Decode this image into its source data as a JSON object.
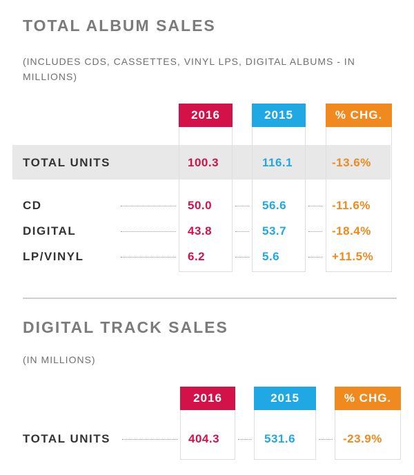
{
  "album": {
    "title": "TOTAL ALBUM SALES",
    "subtitle": "(INCLUDES CDS, CASSETTES, VINYL LPS, DIGITAL ALBUMS - IN MILLIONS)",
    "columns": [
      "2016",
      "2015",
      "% CHG."
    ],
    "column_colors": [
      "#d4124a",
      "#1fa8e4",
      "#f08a1e"
    ],
    "total": {
      "label": "TOTAL UNITS",
      "v2016": "100.3",
      "v2015": "116.1",
      "chg": "-13.6%"
    },
    "rows": [
      {
        "label": "CD",
        "v2016": "50.0",
        "v2015": "56.6",
        "chg": "-11.6%"
      },
      {
        "label": "DIGITAL",
        "v2016": "43.8",
        "v2015": "53.7",
        "chg": "-18.4%"
      },
      {
        "label": "LP/VINYL",
        "v2016": "6.2",
        "v2015": "5.6",
        "chg": "+11.5%"
      }
    ]
  },
  "tracks": {
    "title": "DIGITAL TRACK SALES",
    "subtitle": "(IN MILLIONS)",
    "columns": [
      "2016",
      "2015",
      "% CHG."
    ],
    "total": {
      "label": "TOTAL UNITS",
      "v2016": "404.3",
      "v2015": "531.6",
      "chg": "-23.9%"
    }
  }
}
